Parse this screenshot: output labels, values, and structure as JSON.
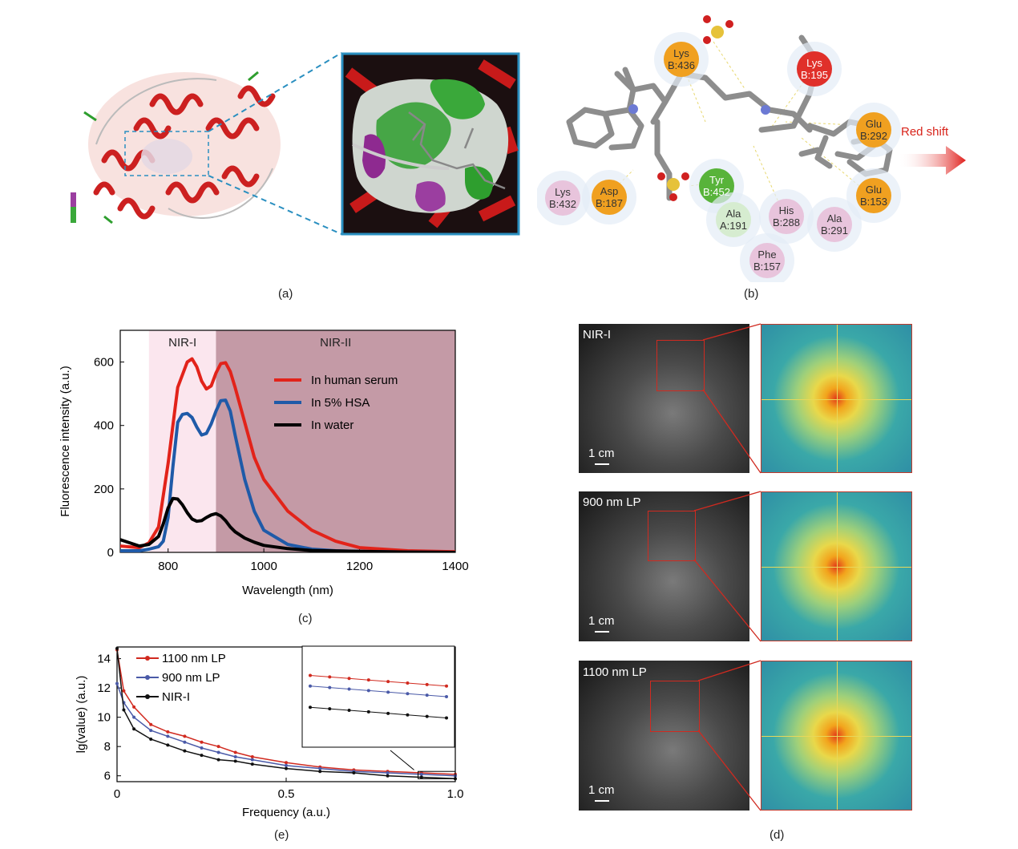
{
  "panel_labels": {
    "a": "(a)",
    "b": "(b)",
    "c": "(c)",
    "d": "(d)",
    "e": "(e)"
  },
  "panel_b": {
    "residues": [
      {
        "name": "Lys",
        "id": "B:436",
        "color": "#f0a020"
      },
      {
        "name": "Lys",
        "id": "B:195",
        "color": "#e0302a"
      },
      {
        "name": "Glu",
        "id": "B:292",
        "color": "#f0a020"
      },
      {
        "name": "Glu",
        "id": "B:153",
        "color": "#f0a020"
      },
      {
        "name": "Tyr",
        "id": "B:452",
        "color": "#58b33a"
      },
      {
        "name": "Ala",
        "id": "A:191",
        "color": "#d6ecd0"
      },
      {
        "name": "His",
        "id": "B:288",
        "color": "#e8c4dc"
      },
      {
        "name": "Ala",
        "id": "B:291",
        "color": "#e8c4dc"
      },
      {
        "name": "Phe",
        "id": "B:157",
        "color": "#e8c4dc"
      },
      {
        "name": "Lys",
        "id": "B:432",
        "color": "#e8c4dc"
      },
      {
        "name": "Asp",
        "id": "B:187",
        "color": "#f0a020"
      }
    ],
    "arrow_label": "Red shift"
  },
  "chart_data": [
    {
      "type": "line",
      "panel": "c",
      "xlabel": "Wavelength (nm)",
      "ylabel": "Fluorescence intensity (a.u.)",
      "xlim": [
        700,
        1400
      ],
      "ylim": [
        0,
        700
      ],
      "xticks": [
        "800",
        "1000",
        "1200",
        "1400"
      ],
      "yticks": [
        "0",
        "200",
        "400",
        "600"
      ],
      "regions": [
        {
          "label": "NIR-I",
          "range": [
            760,
            900
          ],
          "color": "#fbe6ee"
        },
        {
          "label": "NIR-II",
          "range": [
            900,
            1400
          ],
          "color": "#c49aa6"
        }
      ],
      "series": [
        {
          "name": "In human serum",
          "color": "#e2231a",
          "x": [
            700,
            740,
            760,
            780,
            800,
            820,
            840,
            850,
            860,
            870,
            880,
            890,
            900,
            910,
            920,
            930,
            940,
            960,
            980,
            1000,
            1050,
            1100,
            1150,
            1200,
            1300,
            1400
          ],
          "y": [
            20,
            15,
            30,
            80,
            280,
            520,
            600,
            610,
            585,
            540,
            515,
            525,
            565,
            595,
            598,
            570,
            520,
            410,
            300,
            230,
            130,
            70,
            35,
            15,
            5,
            2
          ]
        },
        {
          "name": "In 5% HSA",
          "color": "#1f5aa8",
          "x": [
            700,
            740,
            760,
            780,
            790,
            800,
            810,
            820,
            830,
            840,
            850,
            860,
            870,
            880,
            890,
            900,
            910,
            920,
            930,
            940,
            960,
            980,
            1000,
            1050,
            1100,
            1150,
            1200,
            1300,
            1400
          ],
          "y": [
            5,
            5,
            10,
            18,
            35,
            110,
            270,
            410,
            435,
            438,
            425,
            395,
            370,
            375,
            405,
            445,
            478,
            480,
            445,
            370,
            230,
            130,
            70,
            25,
            10,
            5,
            3,
            1,
            0
          ]
        },
        {
          "name": "In water",
          "color": "#000000",
          "x": [
            700,
            720,
            740,
            760,
            780,
            790,
            800,
            810,
            820,
            830,
            840,
            850,
            860,
            870,
            880,
            890,
            900,
            910,
            920,
            930,
            940,
            960,
            980,
            1000,
            1050,
            1100,
            1200,
            1300,
            1400
          ],
          "y": [
            40,
            30,
            20,
            25,
            50,
            90,
            140,
            170,
            168,
            150,
            125,
            105,
            98,
            100,
            110,
            118,
            122,
            115,
            100,
            80,
            65,
            45,
            32,
            22,
            12,
            6,
            3,
            1,
            0
          ]
        }
      ]
    },
    {
      "type": "line",
      "panel": "e",
      "xlabel": "Frequency (a.u.)",
      "ylabel": "lg(value) (a.u.)",
      "xlim": [
        0,
        1.0
      ],
      "ylim": [
        5.6,
        14.8
      ],
      "xticks": [
        "0",
        "0.5",
        "1.0"
      ],
      "yticks": [
        "6",
        "8",
        "10",
        "12",
        "14"
      ],
      "series": [
        {
          "name": "1100 nm LP",
          "color": "#d12a1f",
          "x": [
            0,
            0.02,
            0.05,
            0.1,
            0.15,
            0.2,
            0.25,
            0.3,
            0.35,
            0.4,
            0.5,
            0.6,
            0.7,
            0.8,
            0.9,
            1.0
          ],
          "y": [
            14.6,
            11.8,
            10.7,
            9.5,
            9.0,
            8.7,
            8.3,
            8.0,
            7.6,
            7.3,
            6.9,
            6.6,
            6.4,
            6.3,
            6.2,
            6.1
          ]
        },
        {
          "name": "900 nm LP",
          "color": "#4a5aa8",
          "x": [
            0,
            0.02,
            0.05,
            0.1,
            0.15,
            0.2,
            0.25,
            0.3,
            0.35,
            0.4,
            0.5,
            0.6,
            0.7,
            0.8,
            0.9,
            1.0
          ],
          "y": [
            12.3,
            11.0,
            10.0,
            9.1,
            8.7,
            8.3,
            7.9,
            7.6,
            7.3,
            7.1,
            6.7,
            6.5,
            6.3,
            6.2,
            6.1,
            6.0
          ]
        },
        {
          "name": "NIR-I",
          "color": "#111111",
          "x": [
            0,
            0.02,
            0.05,
            0.1,
            0.15,
            0.2,
            0.25,
            0.3,
            0.35,
            0.4,
            0.5,
            0.6,
            0.7,
            0.8,
            0.9,
            1.0
          ],
          "y": [
            14.7,
            10.5,
            9.2,
            8.5,
            8.1,
            7.7,
            7.4,
            7.1,
            7.0,
            6.8,
            6.5,
            6.3,
            6.2,
            6.0,
            5.9,
            5.8
          ]
        }
      ]
    }
  ],
  "panel_d": {
    "rows": [
      {
        "label": "NIR-I",
        "scale": "1 cm"
      },
      {
        "label": "900 nm LP",
        "scale": "1 cm"
      },
      {
        "label": "1100 nm LP",
        "scale": "1 cm"
      }
    ]
  }
}
